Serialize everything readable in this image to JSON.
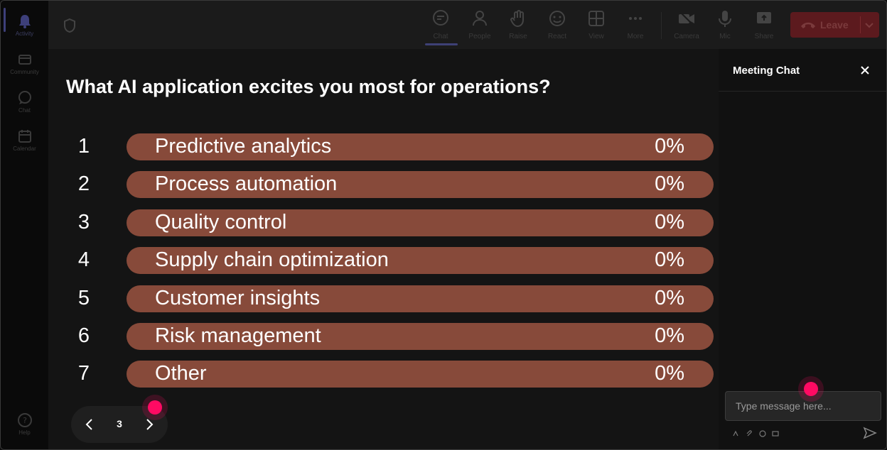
{
  "rail": {
    "items": [
      {
        "label": "Activity",
        "icon": "bell-icon",
        "active": true
      },
      {
        "label": "Community",
        "icon": "community-icon"
      },
      {
        "label": "Chat",
        "icon": "chat-icon"
      },
      {
        "label": "Calendar",
        "icon": "calendar-icon"
      }
    ],
    "help_label": "Help"
  },
  "toolbar": {
    "buttons": [
      {
        "label": "Chat",
        "icon": "chat-icon",
        "active": true
      },
      {
        "label": "People",
        "icon": "people-icon"
      },
      {
        "label": "Raise",
        "icon": "hand-icon"
      },
      {
        "label": "React",
        "icon": "smiley-icon"
      },
      {
        "label": "View",
        "icon": "grid-icon"
      },
      {
        "label": "More",
        "icon": "more-icon"
      },
      {
        "label": "Camera",
        "icon": "camera-off-icon"
      },
      {
        "label": "Mic",
        "icon": "mic-icon"
      },
      {
        "label": "Share",
        "icon": "share-icon"
      }
    ],
    "leave_label": "Leave"
  },
  "poll": {
    "question": "What AI application excites you most for operations?",
    "options": [
      {
        "number": "1",
        "label": "Predictive analytics",
        "percent": "0%"
      },
      {
        "number": "2",
        "label": "Process automation",
        "percent": "0%"
      },
      {
        "number": "3",
        "label": "Quality control",
        "percent": "0%"
      },
      {
        "number": "4",
        "label": "Supply chain optimization",
        "percent": "0%"
      },
      {
        "number": "5",
        "label": "Customer insights",
        "percent": "0%"
      },
      {
        "number": "6",
        "label": "Risk management",
        "percent": "0%"
      },
      {
        "number": "7",
        "label": "Other",
        "percent": "0%"
      }
    ],
    "page": "3"
  },
  "chat": {
    "title": "Meeting Chat",
    "input_placeholder": "Type message here...",
    "input_value": ""
  },
  "colors": {
    "bar": "#874a3a",
    "leave": "#5c1a1e",
    "cursor": "#ff0a63"
  }
}
